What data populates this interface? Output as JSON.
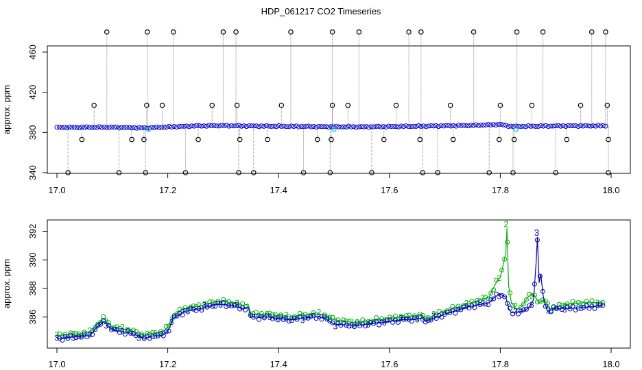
{
  "title": "HDP_061217  CO2 Timeseries",
  "colors": {
    "outlier": "#000000",
    "fill_line": "#8c8c8c",
    "series_blue": "#0000cd",
    "series_green": "#00b000",
    "series_cyan": "#00cccc"
  },
  "chart_data": [
    {
      "type": "scatter",
      "title": "HDP_061217  CO2 Timeseries",
      "xlabel": "",
      "ylabel": "approx. ppm",
      "xlim": [
        17.0,
        18.0
      ],
      "ylim": [
        340,
        480
      ],
      "x_ticks": [
        "17.0",
        "17.2",
        "17.4",
        "17.6",
        "17.8",
        "18.0"
      ],
      "y_ticks": [
        "340",
        "380",
        "420",
        "460"
      ],
      "grid": false,
      "baseline": [
        [
          17.0,
          385.0
        ],
        [
          17.1,
          385.2
        ],
        [
          17.16,
          384.5
        ],
        [
          17.2,
          385.5
        ],
        [
          17.25,
          386.5
        ],
        [
          17.3,
          386.8
        ],
        [
          17.33,
          386.5
        ],
        [
          17.4,
          386.2
        ],
        [
          17.48,
          385.8
        ],
        [
          17.55,
          385.6
        ],
        [
          17.65,
          386.2
        ],
        [
          17.75,
          387.0
        ],
        [
          17.8,
          388.0
        ],
        [
          17.82,
          386.0
        ],
        [
          17.9,
          386.5
        ],
        [
          17.99,
          386.6
        ]
      ],
      "spikes_high": [
        17.09,
        17.163,
        17.21,
        17.3,
        17.323,
        17.422,
        17.497,
        17.545,
        17.635,
        17.657,
        17.752,
        17.83,
        17.877,
        17.965,
        17.99
      ],
      "spikes_low": [
        17.02,
        17.112,
        17.16,
        17.232,
        17.328,
        17.355,
        17.445,
        17.493,
        17.568,
        17.66,
        17.687,
        17.78,
        17.823,
        17.9,
        17.995
      ],
      "points_407": [
        17.067,
        17.162,
        17.19,
        17.28,
        17.325,
        17.405,
        17.497,
        17.525,
        17.612,
        17.71,
        17.8,
        17.857,
        17.945,
        17.993
      ],
      "points_373": [
        17.045,
        17.135,
        17.157,
        17.255,
        17.33,
        17.38,
        17.47,
        17.495,
        17.59,
        17.655,
        17.715,
        17.798,
        17.825,
        17.92,
        17.995
      ],
      "cyan_points": [
        17.165,
        17.5,
        17.828
      ]
    },
    {
      "type": "line",
      "title": "",
      "xlabel": "",
      "ylabel": "approx. ppm",
      "xlim": [
        17.0,
        18.0
      ],
      "ylim": [
        384.2,
        392.6
      ],
      "x_ticks": [
        "17.0",
        "17.2",
        "17.4",
        "17.6",
        "17.8",
        "18.0"
      ],
      "y_ticks": [
        "386",
        "388",
        "390",
        "392"
      ],
      "grid": false,
      "series": [
        {
          "name": "2",
          "color": "#00b000",
          "points": [
            [
              17.0,
              384.7
            ],
            [
              17.03,
              384.8
            ],
            [
              17.06,
              384.9
            ],
            [
              17.07,
              385.4
            ],
            [
              17.085,
              385.9
            ],
            [
              17.1,
              385.3
            ],
            [
              17.13,
              385.1
            ],
            [
              17.16,
              384.7
            ],
            [
              17.175,
              384.9
            ],
            [
              17.19,
              384.9
            ],
            [
              17.2,
              385.3
            ],
            [
              17.21,
              386.1
            ],
            [
              17.23,
              386.6
            ],
            [
              17.26,
              386.8
            ],
            [
              17.29,
              387.1
            ],
            [
              17.32,
              387.0
            ],
            [
              17.325,
              386.9
            ],
            [
              17.335,
              386.8
            ],
            [
              17.345,
              386.9
            ],
            [
              17.35,
              386.2
            ],
            [
              17.38,
              386.2
            ],
            [
              17.42,
              386.0
            ],
            [
              17.46,
              386.2
            ],
            [
              17.48,
              386.2
            ],
            [
              17.5,
              385.8
            ],
            [
              17.54,
              385.6
            ],
            [
              17.58,
              385.8
            ],
            [
              17.62,
              386.0
            ],
            [
              17.66,
              386.1
            ],
            [
              17.665,
              385.9
            ],
            [
              17.7,
              386.4
            ],
            [
              17.74,
              386.9
            ],
            [
              17.78,
              387.4
            ],
            [
              17.79,
              388.2
            ],
            [
              17.795,
              388.6
            ],
            [
              17.8,
              388.8
            ],
            [
              17.805,
              389.6
            ],
            [
              17.81,
              390.5
            ],
            [
              17.812,
              392.2
            ],
            [
              17.815,
              388.2
            ],
            [
              17.82,
              387.0
            ],
            [
              17.83,
              386.5
            ],
            [
              17.84,
              386.8
            ],
            [
              17.85,
              387.4
            ],
            [
              17.86,
              387.6
            ],
            [
              17.87,
              387.0
            ],
            [
              17.88,
              387.2
            ],
            [
              17.89,
              386.6
            ],
            [
              17.92,
              386.9
            ],
            [
              17.95,
              387.0
            ],
            [
              17.985,
              387.0
            ]
          ]
        },
        {
          "name": "3",
          "color": "#0000cd",
          "points": [
            [
              17.0,
              384.5
            ],
            [
              17.03,
              384.6
            ],
            [
              17.06,
              384.7
            ],
            [
              17.07,
              385.2
            ],
            [
              17.085,
              385.7
            ],
            [
              17.1,
              385.1
            ],
            [
              17.13,
              384.9
            ],
            [
              17.16,
              384.5
            ],
            [
              17.175,
              384.7
            ],
            [
              17.19,
              384.7
            ],
            [
              17.2,
              385.0
            ],
            [
              17.21,
              385.9
            ],
            [
              17.23,
              386.4
            ],
            [
              17.26,
              386.6
            ],
            [
              17.29,
              386.9
            ],
            [
              17.32,
              386.8
            ],
            [
              17.325,
              386.7
            ],
            [
              17.335,
              386.6
            ],
            [
              17.345,
              386.7
            ],
            [
              17.35,
              386.0
            ],
            [
              17.38,
              386.0
            ],
            [
              17.42,
              385.8
            ],
            [
              17.46,
              386.0
            ],
            [
              17.48,
              386.0
            ],
            [
              17.5,
              385.5
            ],
            [
              17.54,
              385.4
            ],
            [
              17.58,
              385.6
            ],
            [
              17.62,
              385.8
            ],
            [
              17.66,
              385.9
            ],
            [
              17.665,
              385.7
            ],
            [
              17.7,
              386.2
            ],
            [
              17.74,
              386.7
            ],
            [
              17.78,
              387.0
            ],
            [
              17.79,
              387.4
            ],
            [
              17.8,
              387.6
            ],
            [
              17.81,
              387.4
            ],
            [
              17.815,
              386.6
            ],
            [
              17.82,
              386.3
            ],
            [
              17.84,
              386.4
            ],
            [
              17.85,
              386.6
            ],
            [
              17.86,
              387.2
            ],
            [
              17.865,
              390.0
            ],
            [
              17.867,
              391.6
            ],
            [
              17.87,
              388.4
            ],
            [
              17.873,
              389.0
            ],
            [
              17.878,
              387.3
            ],
            [
              17.885,
              386.4
            ],
            [
              17.9,
              386.6
            ],
            [
              17.93,
              386.6
            ],
            [
              17.96,
              386.7
            ],
            [
              17.985,
              386.8
            ]
          ]
        }
      ]
    }
  ]
}
